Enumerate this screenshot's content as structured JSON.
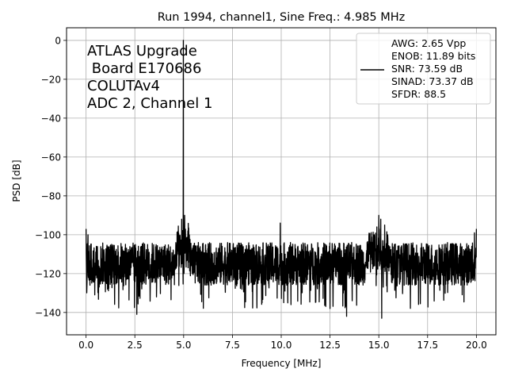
{
  "chart_data": {
    "type": "line",
    "title": "Run 1994, channel1, Sine Freq.: 4.985 MHz",
    "xlabel": "Frequency [MHz]",
    "ylabel": "PSD [dB]",
    "xlim": [
      -1.0,
      21.0
    ],
    "ylim": [
      -151.5,
      6.5
    ],
    "x_ticks": [
      0.0,
      2.5,
      5.0,
      7.5,
      10.0,
      12.5,
      15.0,
      17.5,
      20.0
    ],
    "x_tick_labels": [
      "0.0",
      "2.5",
      "5.0",
      "7.5",
      "10.0",
      "12.5",
      "15.0",
      "17.5",
      "20.0"
    ],
    "y_ticks": [
      0,
      -20,
      -40,
      -60,
      -80,
      -100,
      -120,
      -140
    ],
    "y_tick_labels": [
      "0",
      "−20",
      "−40",
      "−60",
      "−80",
      "−100",
      "−120",
      "−140"
    ],
    "grid": true,
    "legend_position": "upper-right",
    "annotation_lines": [
      "ATLAS Upgrade",
      " Board E170686",
      "COLUTAv4",
      "ADC 2, Channel 1"
    ],
    "legend_lines": [
      "AWG: 2.65 Vpp",
      "ENOB: 11.89 bits",
      "SNR: 73.59 dB",
      "SINAD: 73.37 dB",
      "SFDR: 88.5"
    ],
    "series": [
      {
        "color": "#000000",
        "noise_floor_db": -115,
        "noise_band_db": [
          -126,
          -104
        ],
        "notable_points": [
          {
            "x": 0.0,
            "y": -97
          },
          {
            "x": 0.05,
            "y": -124
          },
          {
            "x": 0.1,
            "y": -100
          },
          {
            "x": 1.1,
            "y": -128
          },
          {
            "x": 2.6,
            "y": -141
          },
          {
            "x": 4.7,
            "y": -101
          },
          {
            "x": 4.9,
            "y": -92
          },
          {
            "x": 4.985,
            "y": 0
          },
          {
            "x": 5.05,
            "y": -90
          },
          {
            "x": 5.3,
            "y": -105
          },
          {
            "x": 9.95,
            "y": -94
          },
          {
            "x": 10.5,
            "y": -136
          },
          {
            "x": 12.5,
            "y": -138
          },
          {
            "x": 13.35,
            "y": -142
          },
          {
            "x": 14.9,
            "y": -96
          },
          {
            "x": 15.0,
            "y": -90
          },
          {
            "x": 15.1,
            "y": -92
          },
          {
            "x": 15.15,
            "y": -143
          },
          {
            "x": 15.3,
            "y": -95
          },
          {
            "x": 19.9,
            "y": -99
          },
          {
            "x": 20.0,
            "y": -97
          }
        ]
      }
    ]
  }
}
